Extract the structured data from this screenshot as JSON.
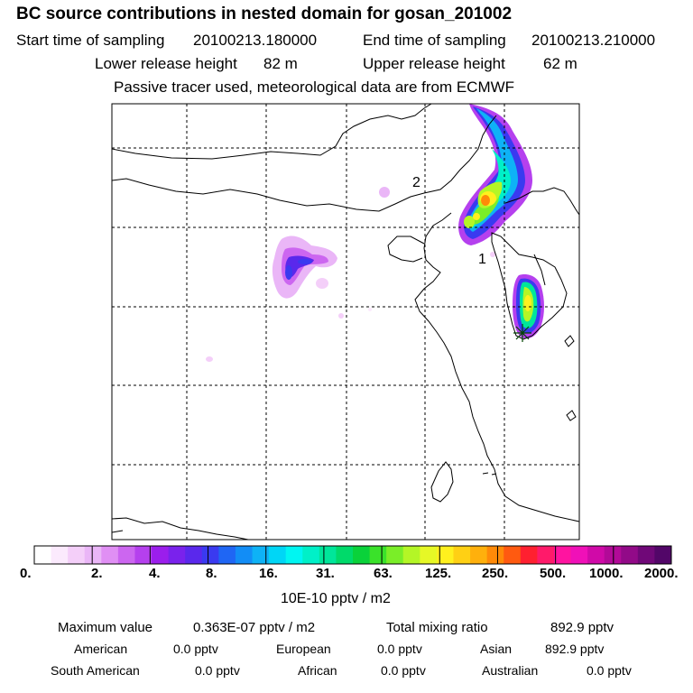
{
  "header": {
    "title": "BC  source contributions in nested domain for gosan_201002",
    "start_label": "Start time of sampling",
    "start_value": "20100213.180000",
    "end_label": "End time of sampling",
    "end_value": "20100213.210000",
    "lower_label": "Lower release height",
    "lower_value": "82 m",
    "upper_label": "Upper release height",
    "upper_value": "62 m",
    "tracer_note": "Passive tracer used, meteorological data are from ECMWF"
  },
  "map": {
    "markers": [
      "2",
      "1"
    ],
    "receptor_symbol": "✳"
  },
  "colorbar": {
    "colors": [
      "#ffffff",
      "#fbeafd",
      "#f4cff9",
      "#eab6f7",
      "#e08ff4",
      "#cc66f0",
      "#b540ee",
      "#9b1eec",
      "#7a22ec",
      "#5a28ec",
      "#3a3af0",
      "#1f66f4",
      "#128df6",
      "#0eb2f6",
      "#00d6f6",
      "#00f6f2",
      "#00f0c8",
      "#00e69a",
      "#00da6a",
      "#0ad23a",
      "#3ae22a",
      "#7aee28",
      "#b4f626",
      "#e6f826",
      "#fff01e",
      "#ffd014",
      "#ffb00c",
      "#ff8a08",
      "#ff5a10",
      "#ff2030",
      "#ff1a6a",
      "#ff14a0",
      "#f010b8",
      "#d00aa8",
      "#b20a98",
      "#920a88",
      "#700878",
      "#520668"
    ],
    "tick_labels": [
      "0.",
      "2.",
      "4.",
      "8.",
      "16.",
      "31.",
      "63.",
      "125.",
      "250.",
      "500.",
      "1000.",
      "2000."
    ],
    "unit": "10E-10 pptv / m2"
  },
  "summary": {
    "max_label": "Maximum value",
    "max_value": "0.363E-07 pptv / m2",
    "total_label": "Total mixing ratio",
    "total_value": "892.9 pptv",
    "regions": [
      {
        "name": "American",
        "value": "0.0 pptv"
      },
      {
        "name": "European",
        "value": "0.0 pptv"
      },
      {
        "name": "Asian",
        "value": "892.9 pptv"
      },
      {
        "name": "South American",
        "value": "0.0 pptv"
      },
      {
        "name": "African",
        "value": "0.0 pptv"
      },
      {
        "name": "Australian",
        "value": "0.0 pptv"
      }
    ]
  }
}
